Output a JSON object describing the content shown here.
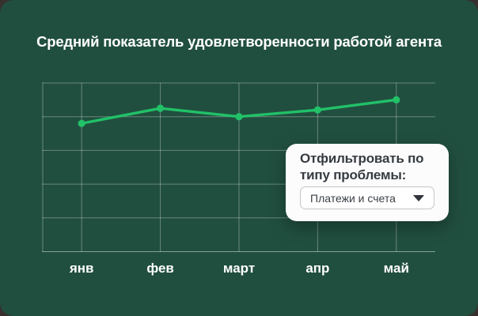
{
  "window": {
    "outer_background": "#382f2f",
    "panel_color": "#214f3f"
  },
  "chart_data": {
    "type": "line",
    "title": "Средний показатель удовлетворенности работой агента",
    "categories": [
      "янв",
      "фев",
      "март",
      "апр",
      "май"
    ],
    "values": [
      3.8,
      4.25,
      4.0,
      4.2,
      4.5
    ],
    "xlabel": "",
    "ylabel": "",
    "ylim": [
      0,
      5
    ],
    "y_gridline_step": 1,
    "y_tick_labels_visible": false,
    "grid": true,
    "legend": "none",
    "line_color": "#21c168",
    "marker_color": "#21c168",
    "gridline_color": "rgba(255,255,255,0.32)",
    "axis_color": "rgba(255,255,255,0.45)"
  },
  "filter_card": {
    "label": "Отфильтровать по типу проблемы:",
    "dropdown": {
      "selected": "Платежи и счета",
      "icon": "caret-down"
    }
  }
}
